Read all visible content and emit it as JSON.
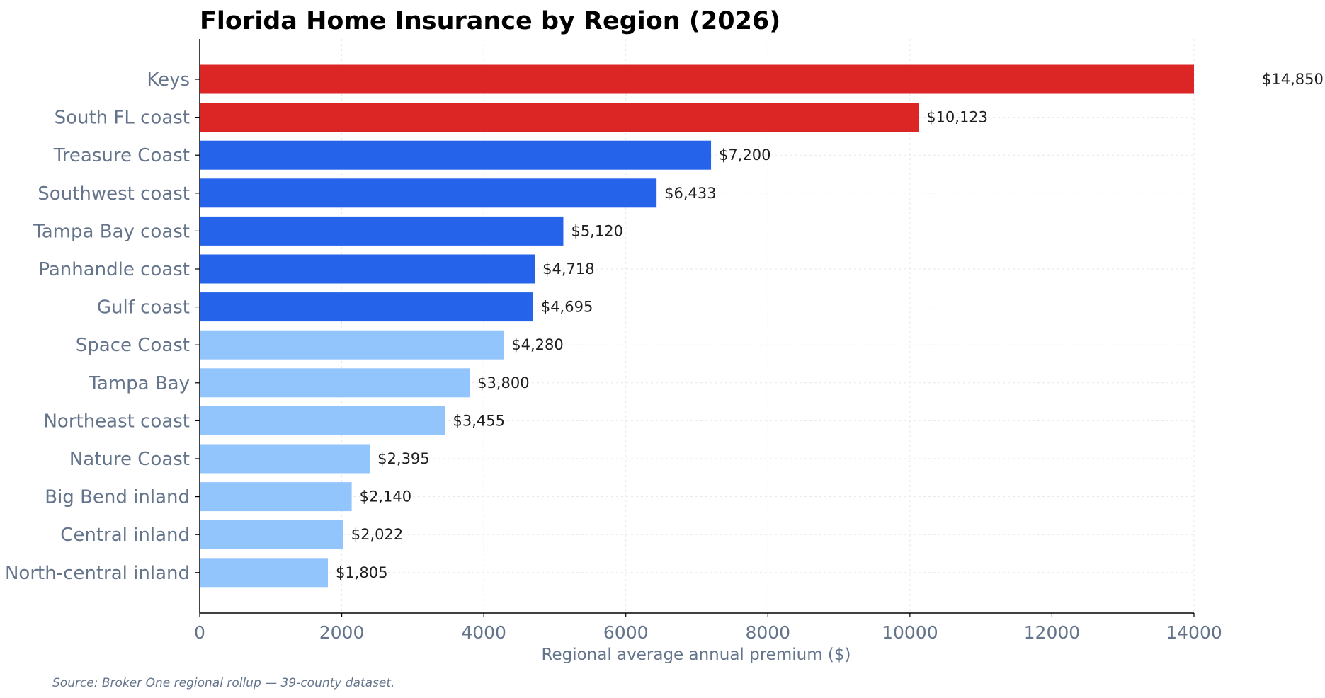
{
  "chart_data": {
    "type": "bar",
    "orientation": "horizontal",
    "title": "Florida Home Insurance by Region (2026)",
    "xlabel": "Regional average annual premium ($)",
    "ylabel": "",
    "xlim": [
      0,
      14000
    ],
    "xticks": [
      0,
      2000,
      4000,
      6000,
      8000,
      10000,
      12000,
      14000
    ],
    "grid": true,
    "categories": [
      "Keys",
      "South FL coast",
      "Treasure Coast",
      "Southwest coast",
      "Tampa Bay coast",
      "Panhandle coast",
      "Gulf coast",
      "Space Coast",
      "Tampa Bay",
      "Northeast coast",
      "Nature Coast",
      "Big Bend inland",
      "Central inland",
      "North-central inland"
    ],
    "values": [
      14850,
      10123,
      7200,
      6433,
      5120,
      4718,
      4695,
      4280,
      3800,
      3455,
      2395,
      2140,
      2022,
      1805
    ],
    "value_labels": [
      "$14,850",
      "$10,123",
      "$7,200",
      "$6,433",
      "$5,120",
      "$4,718",
      "$4,695",
      "$4,280",
      "$3,800",
      "$3,455",
      "$2,395",
      "$2,140",
      "$2,022",
      "$1,805"
    ],
    "bar_colors": [
      "#dc2626",
      "#dc2626",
      "#2563eb",
      "#2563eb",
      "#2563eb",
      "#2563eb",
      "#2563eb",
      "#93c5fd",
      "#93c5fd",
      "#93c5fd",
      "#93c5fd",
      "#93c5fd",
      "#93c5fd",
      "#93c5fd"
    ]
  },
  "source_note": "Source: Broker One regional rollup — 39-county dataset."
}
